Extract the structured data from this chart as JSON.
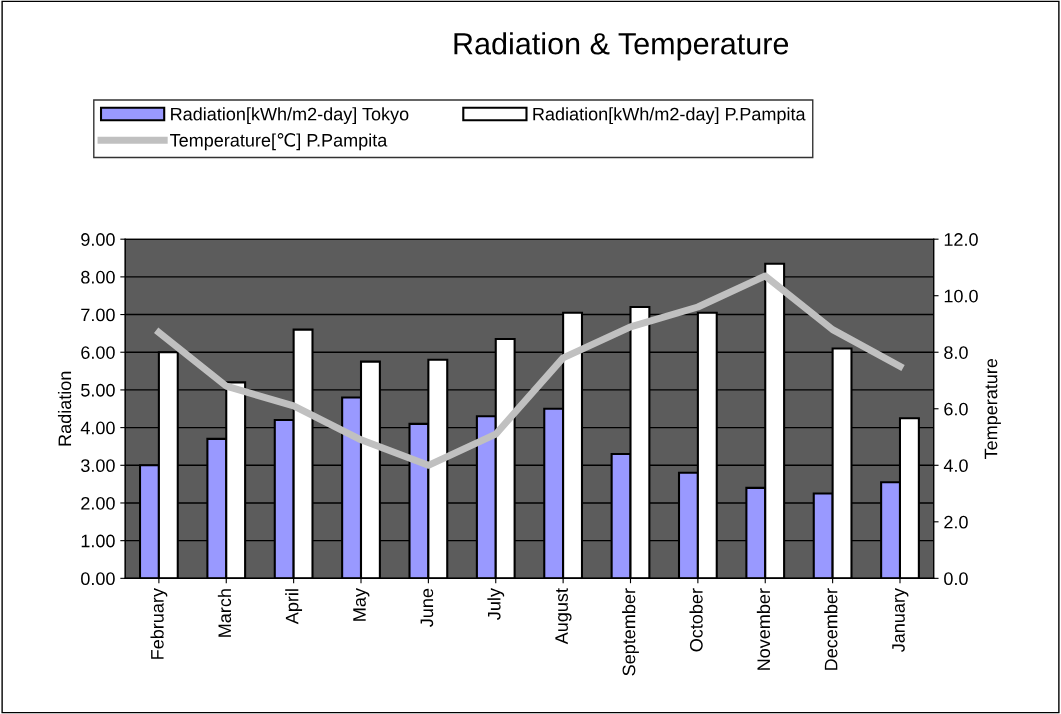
{
  "chart_data": {
    "type": "bar",
    "title": "Radiation & Temperature",
    "ylabel": "Radiation",
    "y2label": "Temperature",
    "categories": [
      "February",
      "March",
      "April",
      "May",
      "June",
      "July",
      "August",
      "September",
      "October",
      "November",
      "December",
      "January"
    ],
    "series": [
      {
        "name": "Radiation[kWh/m2-day] Tokyo",
        "color": "#9999ff",
        "values": [
          3.0,
          3.7,
          4.2,
          4.8,
          4.1,
          4.3,
          4.5,
          3.3,
          2.8,
          2.4,
          2.25,
          2.55
        ]
      },
      {
        "name": "Radiation[kWh/m2-day] P.Pampita",
        "color": "#ffffff",
        "values": [
          6.0,
          5.2,
          6.6,
          5.75,
          5.8,
          6.35,
          7.05,
          7.2,
          7.05,
          8.35,
          6.1,
          4.25
        ]
      },
      {
        "name": "Temperature[℃] P.Pampita",
        "color": "#c0c0c0",
        "type": "line",
        "axis": "y2",
        "values": [
          8.7,
          6.8,
          6.1,
          4.9,
          4.0,
          5.1,
          7.8,
          8.9,
          9.6,
          10.7,
          8.8,
          7.5
        ]
      }
    ],
    "ylim": [
      0,
      9
    ],
    "yticks": [
      {
        "value": 0,
        "label": "0.00"
      },
      {
        "value": 1,
        "label": "1.00"
      },
      {
        "value": 2,
        "label": "2.00"
      },
      {
        "value": 3,
        "label": "3.00"
      },
      {
        "value": 4,
        "label": "4.00"
      },
      {
        "value": 5,
        "label": "5.00"
      },
      {
        "value": 6,
        "label": "6.00"
      },
      {
        "value": 7,
        "label": "7.00"
      },
      {
        "value": 8,
        "label": "8.00"
      },
      {
        "value": 9,
        "label": "9.00"
      }
    ],
    "y2lim": [
      0,
      12
    ],
    "y2ticks": [
      {
        "value": 0,
        "label": "0.0"
      },
      {
        "value": 2,
        "label": "2.0"
      },
      {
        "value": 4,
        "label": "4.0"
      },
      {
        "value": 6,
        "label": "6.0"
      },
      {
        "value": 8,
        "label": "8.0"
      },
      {
        "value": 10,
        "label": "10.0"
      },
      {
        "value": 12,
        "label": "12.0"
      }
    ],
    "grid": "y",
    "legend": "top"
  }
}
